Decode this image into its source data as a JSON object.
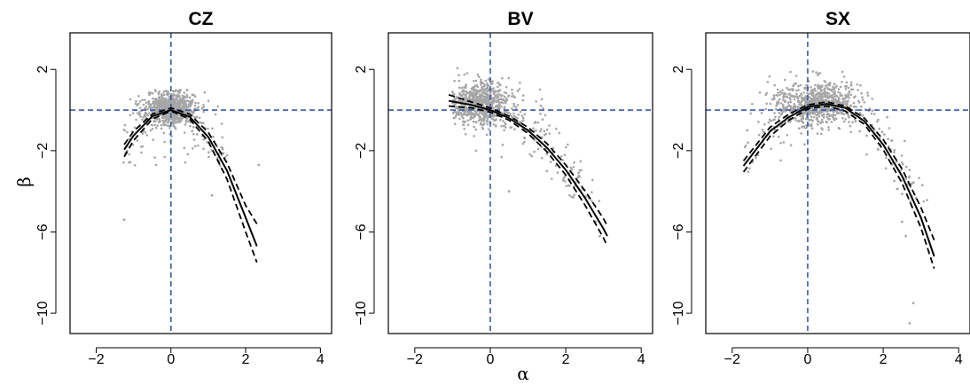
{
  "figure": {
    "xlabel": "α",
    "ylabel": "β"
  },
  "colors": {
    "points": "#a6a6a6",
    "curve": "#000000",
    "reference_lines": "#3a5aa8",
    "frame": "#000000"
  },
  "chart_data": [
    {
      "type": "scatter",
      "title": "CZ",
      "xlim": [
        -2.7,
        4.3
      ],
      "ylim": [
        -11,
        3.8
      ],
      "xticks": [
        -2,
        0,
        2,
        4
      ],
      "yticks": [
        2,
        -2,
        -6,
        -10
      ],
      "reference_lines": {
        "x": 0,
        "y": 0
      },
      "scatter_cloud": {
        "center": [
          0.0,
          0.1
        ],
        "spread": [
          0.3,
          0.4
        ],
        "extent_x": [
          -1.3,
          1.6
        ],
        "extent_y": [
          -2.8,
          1.0
        ]
      },
      "outlier_points": [
        [
          -1.25,
          -5.4
        ],
        [
          2.35,
          -2.7
        ],
        [
          1.1,
          -4.2
        ],
        [
          0.7,
          -1.2
        ]
      ],
      "fit_curve": {
        "x": [
          -1.25,
          -1.0,
          -0.5,
          0.0,
          0.5,
          1.0,
          1.5,
          2.0,
          2.3
        ],
        "y": [
          -1.95,
          -1.26,
          -0.31,
          0.0,
          -0.33,
          -1.33,
          -2.98,
          -5.3,
          -6.7
        ]
      },
      "ci_upper": {
        "x": [
          -1.25,
          -1.0,
          -0.5,
          0.0,
          0.5,
          1.0,
          1.5,
          2.0,
          2.3
        ],
        "y": [
          -1.7,
          -1.05,
          -0.2,
          0.1,
          -0.2,
          -1.1,
          -2.6,
          -4.7,
          -5.6
        ]
      },
      "ci_lower": {
        "x": [
          -1.25,
          -1.0,
          -0.5,
          0.0,
          0.5,
          1.0,
          1.5,
          2.0,
          2.3
        ],
        "y": [
          -2.3,
          -1.5,
          -0.45,
          -0.05,
          -0.45,
          -1.55,
          -3.4,
          -6.0,
          -7.5
        ]
      }
    },
    {
      "type": "scatter",
      "title": "BV",
      "xlim": [
        -2.7,
        4.3
      ],
      "ylim": [
        -11,
        3.8
      ],
      "xticks": [
        -2,
        0,
        2,
        4
      ],
      "yticks": [
        2,
        -2,
        -6,
        -10
      ],
      "reference_lines": {
        "x": 0,
        "y": 0
      },
      "scatter_cloud": {
        "center": [
          -0.3,
          0.3
        ],
        "spread": [
          0.4,
          0.5
        ],
        "extent_x": [
          -1.0,
          2.9
        ],
        "extent_y": [
          -4.5,
          2.2
        ]
      },
      "outlier_points": [
        [
          2.8,
          -5.5
        ],
        [
          2.9,
          -6.2
        ],
        [
          1.5,
          -3.0
        ],
        [
          0.5,
          -4.0
        ],
        [
          2.2,
          -4.3
        ]
      ],
      "fit_curve": {
        "x": [
          -1.1,
          -0.5,
          0.0,
          0.5,
          1.0,
          1.5,
          2.0,
          2.5,
          3.0,
          3.1
        ],
        "y": [
          0.45,
          0.25,
          0.0,
          -0.4,
          -1.0,
          -1.85,
          -2.95,
          -4.3,
          -5.85,
          -6.2
        ]
      },
      "ci_upper": {
        "x": [
          -1.1,
          -0.5,
          0.0,
          0.5,
          1.0,
          1.5,
          2.0,
          2.5,
          3.0,
          3.1
        ],
        "y": [
          0.75,
          0.4,
          0.1,
          -0.3,
          -0.85,
          -1.65,
          -2.7,
          -3.95,
          -5.35,
          -5.7
        ]
      },
      "ci_lower": {
        "x": [
          -1.1,
          -0.5,
          0.0,
          0.5,
          1.0,
          1.5,
          2.0,
          2.5,
          3.0,
          3.1
        ],
        "y": [
          0.2,
          0.1,
          -0.1,
          -0.5,
          -1.15,
          -2.05,
          -3.2,
          -4.65,
          -6.3,
          -6.7
        ]
      }
    },
    {
      "type": "scatter",
      "title": "SX",
      "xlim": [
        -2.7,
        4.3
      ],
      "ylim": [
        -11,
        3.8
      ],
      "xticks": [
        -2,
        0,
        2,
        4
      ],
      "yticks": [
        2,
        -2,
        -6,
        -10
      ],
      "reference_lines": {
        "x": 0,
        "y": 0
      },
      "scatter_cloud": {
        "center": [
          0.2,
          0.3
        ],
        "spread": [
          0.5,
          0.5
        ],
        "extent_x": [
          -1.7,
          3.2
        ],
        "extent_y": [
          -4.5,
          2.0
        ]
      },
      "outlier_points": [
        [
          2.5,
          -5.5
        ],
        [
          2.7,
          -10.5
        ],
        [
          2.8,
          -9.5
        ],
        [
          2.6,
          -6.2
        ],
        [
          -1.6,
          -1.0
        ]
      ],
      "fit_curve": {
        "x": [
          -1.7,
          -1.0,
          -0.5,
          0.0,
          0.5,
          1.0,
          1.5,
          2.0,
          2.5,
          3.0,
          3.35
        ],
        "y": [
          -2.75,
          -1.05,
          -0.35,
          0.15,
          0.3,
          0.1,
          -0.55,
          -1.7,
          -3.25,
          -5.3,
          -7.2
        ]
      },
      "ci_upper": {
        "x": [
          -1.7,
          -1.0,
          -0.5,
          0.0,
          0.5,
          1.0,
          1.5,
          2.0,
          2.5,
          3.0,
          3.35
        ],
        "y": [
          -2.5,
          -0.85,
          -0.2,
          0.25,
          0.4,
          0.2,
          -0.4,
          -1.45,
          -2.9,
          -4.8,
          -6.4
        ]
      },
      "ci_lower": {
        "x": [
          -1.7,
          -1.0,
          -0.5,
          0.0,
          0.5,
          1.0,
          1.5,
          2.0,
          2.5,
          3.0,
          3.35
        ],
        "y": [
          -3.05,
          -1.3,
          -0.5,
          0.05,
          0.2,
          -0.05,
          -0.7,
          -1.95,
          -3.6,
          -5.8,
          -7.8
        ]
      }
    }
  ]
}
